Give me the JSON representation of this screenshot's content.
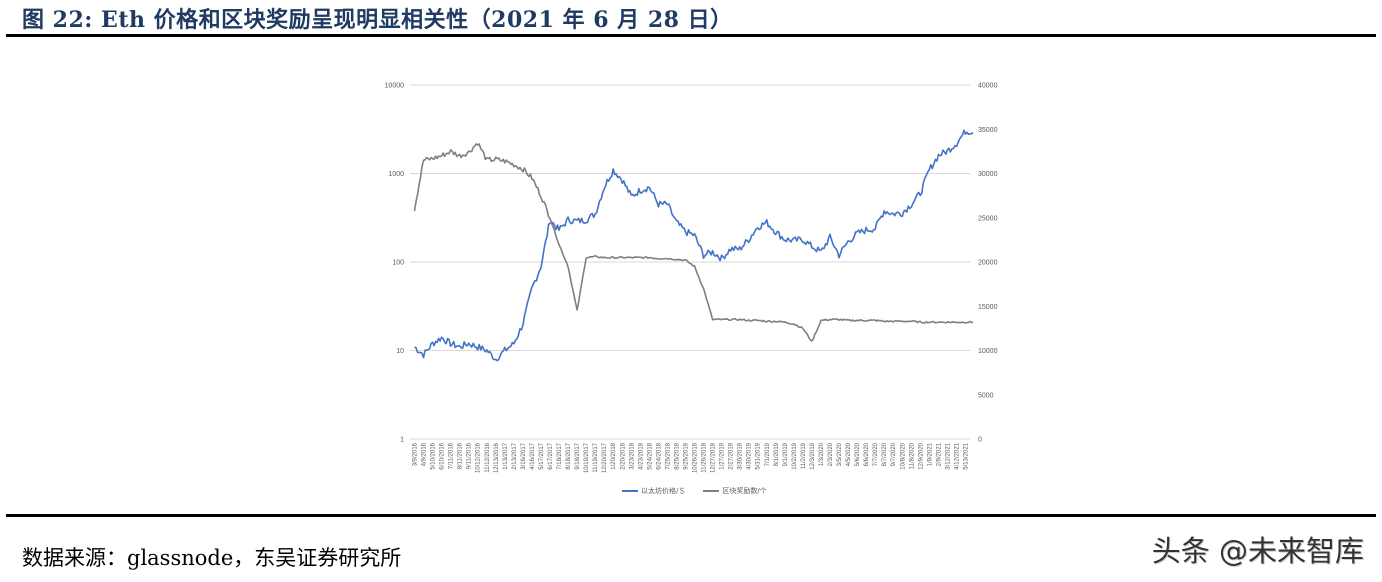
{
  "figure": {
    "title": "图 22:  Eth 价格和区块奖励呈现明显相关性（2021 年 6 月 28 日）",
    "source": "数据来源：glassnode，东吴证券研究所",
    "watermark": "头条 @未来智库"
  },
  "colors": {
    "title": "#1f3a63",
    "price_series": "#4472c4",
    "reward_series": "#7f7f7f",
    "grid": "#d9d9d9",
    "axis_text": "#595959"
  },
  "legend": {
    "items": [
      {
        "label": "以太坊价格/＄",
        "color": "#4472c4"
      },
      {
        "label": "区块奖励数/个",
        "color": "#7f7f7f"
      }
    ]
  },
  "axes": {
    "left_ticks": [
      "10000",
      "1000",
      "100",
      "10",
      "1"
    ],
    "right_ticks": [
      "40000",
      "35000",
      "30000",
      "25000",
      "20000",
      "15000",
      "10000",
      "5000",
      "0"
    ],
    "x_ticks": [
      "3/9/2016",
      "4/9/2016",
      "5/10/2016",
      "6/10/2016",
      "7/11/2016",
      "8/11/2016",
      "9/11/2016",
      "10/12/2016",
      "11/12/2016",
      "12/13/2016",
      "1/13/2017",
      "2/13/2017",
      "3/16/2017",
      "4/16/2017",
      "5/17/2017",
      "6/17/2017",
      "7/18/2017",
      "8/18/2017",
      "9/18/2017",
      "10/19/2017",
      "11/19/2017",
      "12/20/2017",
      "1/20/2018",
      "2/20/2018",
      "3/23/2018",
      "4/23/2018",
      "5/24/2018",
      "6/24/2018",
      "7/25/2018",
      "8/25/2018",
      "9/25/2018",
      "10/26/2018",
      "11/26/2018",
      "12/27/2018",
      "1/27/2019",
      "2/27/2019",
      "3/30/2019",
      "4/30/2019",
      "5/31/2019",
      "7/1/2019",
      "8/1/2019",
      "9/1/2019",
      "10/2/2019",
      "11/2/2019",
      "12/3/2019",
      "1/3/2020",
      "2/3/2020",
      "3/5/2020",
      "4/5/2020",
      "5/6/2020",
      "6/6/2020",
      "7/7/2020",
      "8/7/2020",
      "9/7/2020",
      "10/8/2020",
      "11/8/2020",
      "12/9/2020",
      "1/9/2021",
      "2/9/2021",
      "3/12/2021",
      "4/12/2021",
      "5/13/2021"
    ]
  },
  "chart_data": {
    "type": "line",
    "title": "Eth 价格和区块奖励呈现明显相关性（2021 年 6 月 28 日）",
    "xlabel": "",
    "ylabel_left": "以太坊价格/＄ (log scale)",
    "ylabel_right": "区块奖励数/个",
    "ylim_left": [
      1,
      10000
    ],
    "ylim_right": [
      0,
      40000
    ],
    "left_scale": "log",
    "grid": true,
    "legend_position": "bottom",
    "x": [
      "3/9/2016",
      "4/9/2016",
      "5/10/2016",
      "6/10/2016",
      "7/11/2016",
      "8/11/2016",
      "9/11/2016",
      "10/12/2016",
      "11/12/2016",
      "12/13/2016",
      "1/13/2017",
      "2/13/2017",
      "3/16/2017",
      "4/16/2017",
      "5/17/2017",
      "6/17/2017",
      "7/18/2017",
      "8/18/2017",
      "9/18/2017",
      "10/19/2017",
      "11/19/2017",
      "12/20/2017",
      "1/20/2018",
      "2/20/2018",
      "3/23/2018",
      "4/23/2018",
      "5/24/2018",
      "6/24/2018",
      "7/25/2018",
      "8/25/2018",
      "9/25/2018",
      "10/26/2018",
      "11/26/2018",
      "12/27/2018",
      "1/27/2019",
      "2/27/2019",
      "3/30/2019",
      "4/30/2019",
      "5/31/2019",
      "7/1/2019",
      "8/1/2019",
      "9/1/2019",
      "10/2/2019",
      "11/2/2019",
      "12/3/2019",
      "1/3/2020",
      "2/3/2020",
      "3/5/2020",
      "4/5/2020",
      "5/6/2020",
      "6/6/2020",
      "7/7/2020",
      "8/7/2020",
      "9/7/2020",
      "10/8/2020",
      "11/8/2020",
      "12/9/2020",
      "1/9/2021",
      "2/9/2021",
      "3/12/2021",
      "4/12/2021",
      "5/13/2021"
    ],
    "series": [
      {
        "name": "以太坊价格/＄",
        "axis": "left",
        "values": [
          11,
          9,
          12,
          14,
          12,
          11,
          12,
          11,
          10,
          8,
          10,
          12,
          20,
          50,
          90,
          300,
          230,
          300,
          290,
          300,
          350,
          700,
          1100,
          850,
          550,
          650,
          700,
          450,
          450,
          280,
          220,
          200,
          120,
          130,
          110,
          140,
          140,
          180,
          250,
          280,
          220,
          180,
          175,
          180,
          150,
          130,
          190,
          120,
          170,
          210,
          230,
          240,
          380,
          350,
          360,
          450,
          600,
          1100,
          1600,
          1800,
          2200,
          3000
        ]
      },
      {
        "name": "区块奖励数/个",
        "axis": "right",
        "values": [
          26000,
          31500,
          31700,
          32000,
          32500,
          32000,
          32400,
          33500,
          31500,
          31600,
          31400,
          31000,
          30500,
          29500,
          27500,
          25000,
          22000,
          19500,
          14500,
          20500,
          20600,
          20500,
          20500,
          20500,
          20500,
          20500,
          20500,
          20400,
          20400,
          20300,
          20200,
          19500,
          17000,
          13500,
          13500,
          13500,
          13500,
          13400,
          13400,
          13300,
          13300,
          13200,
          13000,
          12500,
          11000,
          13400,
          13500,
          13500,
          13400,
          13400,
          13400,
          13400,
          13300,
          13300,
          13300,
          13300,
          13200,
          13200,
          13200,
          13200,
          13200,
          13200
        ]
      }
    ]
  }
}
